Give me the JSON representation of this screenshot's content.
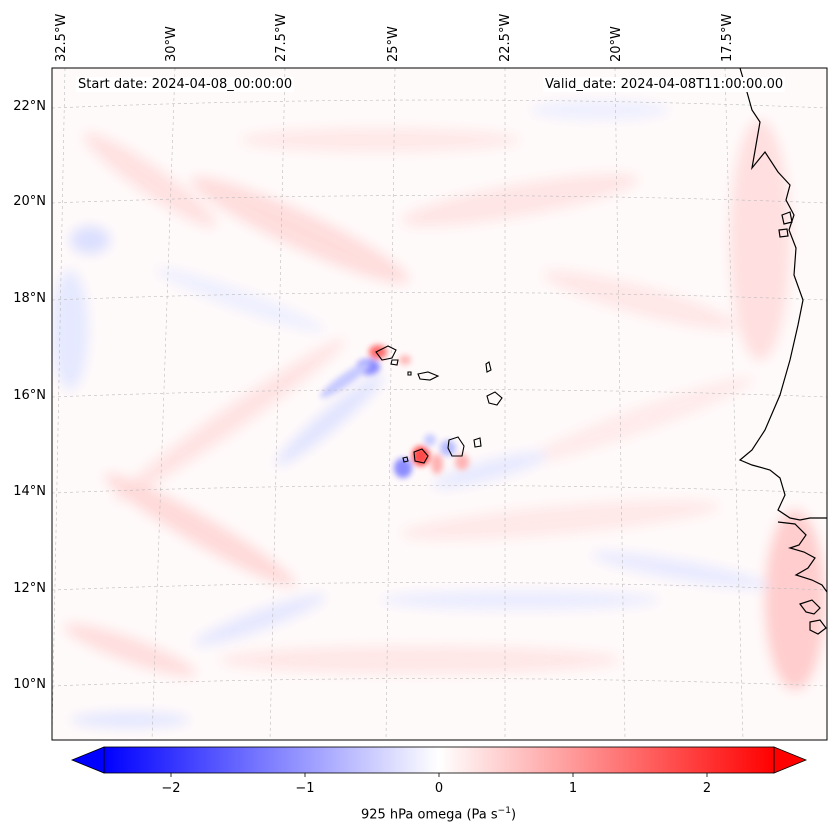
{
  "map": {
    "start_date": "Start date: 2024-04-08_00:00:00",
    "valid_date": "Valid_date: 2024-04-08T11:00:00.00",
    "lon_labels": [
      "32.5°W",
      "30°W",
      "27.5°W",
      "25°W",
      "22.5°W",
      "20°W",
      "17.5°W"
    ],
    "lat_labels": [
      "22°N",
      "20°N",
      "18°N",
      "16°N",
      "14°N",
      "12°N",
      "10°N"
    ],
    "islands": [
      "Santo Antão",
      "São Vicente",
      "São Nicolau",
      "Sal",
      "Boa Vista",
      "Fogo",
      "Santiago",
      "Maio",
      "Brava"
    ],
    "coastline": "West Africa (Mauritania, Senegal, Gambia, Guinea-Bissau)"
  },
  "colorbar": {
    "label": "925 hPa omega (Pa s",
    "label_sup": "−1",
    "label_close": ")",
    "ticks": [
      "−2",
      "−1",
      "0",
      "1",
      "2"
    ],
    "tick_values": [
      -2,
      -1,
      0,
      1,
      2
    ],
    "vmin": -2.7,
    "vmax": 2.7,
    "colormap": "bwr",
    "color_min": "#0000ff",
    "color_mid": "#ffffff",
    "color_max": "#ff0000"
  }
}
